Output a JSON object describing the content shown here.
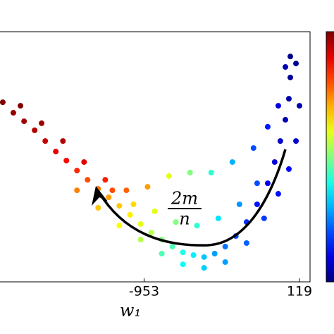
{
  "chart_data": {
    "type": "scatter",
    "xlabel": "w₁",
    "annotation": {
      "numerator": "2m",
      "denominator": "n"
    },
    "xlim": [
      -1952,
      192
    ],
    "xticks": [
      -953,
      119
    ],
    "ylim": [
      0,
      100
    ],
    "colormap": "jet",
    "clim": [
      0,
      1
    ],
    "series": [
      {
        "x": [
          -1928,
          -1855,
          -1781,
          -1708,
          -1635,
          -1562,
          -1489,
          -1416,
          -1343,
          -1270,
          -1197,
          -1124,
          -1050,
          -977,
          -904,
          -831,
          -758,
          -685,
          -612,
          -539,
          -466,
          -393,
          -320,
          -246,
          -173,
          -100,
          -52,
          -13,
          22,
          46,
          56,
          56,
          -1806,
          -1660,
          -1513,
          -1367,
          -1221,
          -1075,
          -929,
          -782,
          -636,
          -490,
          -344,
          -198,
          -100,
          -27,
          22,
          -1416,
          -1270,
          -1124,
          -977,
          -831,
          -685,
          -539,
          -393,
          -246,
          -125,
          -27,
          46,
          95,
          119,
          95,
          -1172,
          -1026,
          -880,
          -734,
          -588,
          -441,
          -295,
          -173
        ],
        "values": [
          71.8,
          67.6,
          64.2,
          60.6,
          56.3,
          52.1,
          48.5,
          44.5,
          40.8,
          37.2,
          33.8,
          30.4,
          26.8,
          23.1,
          19.7,
          16.9,
          14.1,
          11.8,
          10.7,
          9.9,
          11.3,
          14.1,
          18.3,
          23.9,
          31,
          39.4,
          47.9,
          56.3,
          64.8,
          73.2,
          81.7,
          90.1,
          70.4,
          63.4,
          56.3,
          47.9,
          40.8,
          36.6,
          38,
          42.3,
          43.7,
          43.7,
          47.9,
          53.5,
          62,
          70.4,
          85.9,
          36.6,
          29.6,
          22.5,
          16.9,
          11.3,
          7,
          5.6,
          7.9,
          15.5,
          25.4,
          35.2,
          45.1,
          56.3,
          70.4,
          87.3,
          36.6,
          31,
          28.2,
          23.9,
          22.5,
          25.4,
          31,
          39.4
        ],
        "c": [
          1,
          0.98,
          0.97,
          0.95,
          0.93,
          0.9,
          0.87,
          0.84,
          0.8,
          0.76,
          0.72,
          0.68,
          0.64,
          0.6,
          0.55,
          0.5,
          0.45,
          0.4,
          0.36,
          0.32,
          0.28,
          0.24,
          0.2,
          0.17,
          0.14,
          0.11,
          0.09,
          0.07,
          0.05,
          0.04,
          0.02,
          0.01,
          1,
          0.97,
          0.95,
          0.9,
          0.85,
          0.78,
          0.72,
          0.6,
          0.5,
          0.42,
          0.3,
          0.2,
          0.15,
          0.1,
          0.05,
          0.75,
          0.68,
          0.62,
          0.55,
          0.45,
          0.38,
          0.33,
          0.28,
          0.22,
          0.18,
          0.14,
          0.12,
          0.08,
          0.05,
          0.02,
          0.8,
          0.66,
          0.6,
          0.5,
          0.42,
          0.35,
          0.27,
          0.2
        ]
      }
    ]
  }
}
